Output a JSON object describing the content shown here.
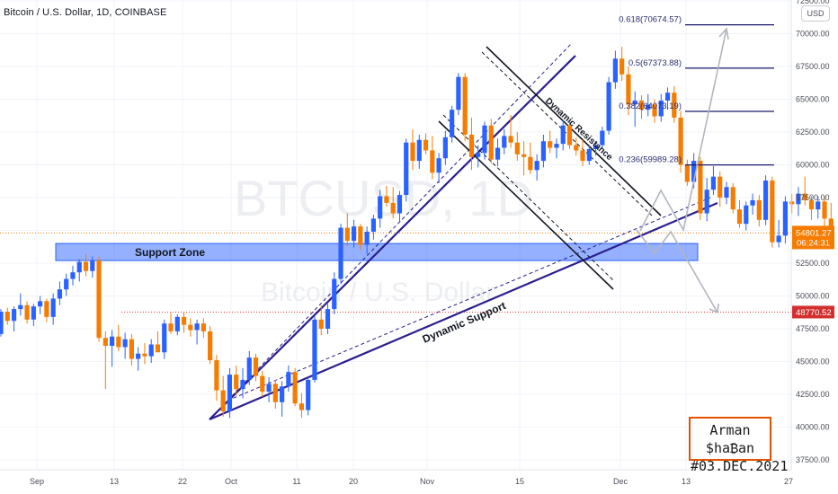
{
  "header": {
    "title": "Bitcoin / U.S. Dollar, 1D, COINBASE"
  },
  "watermark": {
    "symbol": "BTCUSD, 1D",
    "name": "Bitcoin / U.S. Dollar"
  },
  "currency_button": "USD",
  "signature": {
    "line1": "Arman $ha₿an",
    "line2": "#03.DEC.2021"
  },
  "colors": {
    "up": "#2962ff",
    "down": "#f57c00",
    "support_zone": "#2962ff",
    "trend": "#2b1f8e",
    "fib": "#1a1a6e",
    "projection": "#b2b5be",
    "signature_border": "#e65100"
  },
  "chart_data": {
    "type": "candlestick",
    "title": "Bitcoin / U.S. Dollar, 1D, COINBASE",
    "x_ticks": [
      "Sep",
      "13",
      "22",
      "Oct",
      "11",
      "20",
      "Nov",
      "15",
      "Dec",
      "13",
      "27"
    ],
    "y_ticks": [
      "72500.00",
      "70000.00",
      "67500.00",
      "65000.00",
      "62500.00",
      "60000.00",
      "57500.00",
      "55000.00",
      "52500.00",
      "50000.00",
      "47500.00",
      "45000.00",
      "42500.00",
      "40000.00",
      "37500.00"
    ],
    "ylim": [
      37000,
      73500
    ],
    "current_price": {
      "value": "54801.27",
      "countdown": "06:24:31"
    },
    "marked_level": "48770.52",
    "fibonacci_levels": [
      {
        "ratio": "0.618",
        "price": "70674.57",
        "label": "0.618(70674.57)"
      },
      {
        "ratio": "0.5",
        "price": "67373.88",
        "label": "0.5(67373.88)"
      },
      {
        "ratio": "0.382",
        "price": "64073.19",
        "label": "0.382(64073.19)"
      },
      {
        "ratio": "0.236",
        "price": "59989.28",
        "label": "0.236(59989.28)"
      }
    ],
    "support_zone": {
      "label": "Support Zone",
      "from": 52700,
      "to": 54000
    },
    "annotations": [
      "Dynamic Resistance",
      "Dynamic Support"
    ],
    "candles": [
      {
        "o": 47100,
        "h": 49000,
        "l": 46900,
        "c": 48800
      },
      {
        "o": 48800,
        "h": 49100,
        "l": 47800,
        "c": 48100
      },
      {
        "o": 48100,
        "h": 49200,
        "l": 47300,
        "c": 49000
      },
      {
        "o": 49000,
        "h": 50200,
        "l": 48500,
        "c": 49300
      },
      {
        "o": 49300,
        "h": 49600,
        "l": 47900,
        "c": 48200
      },
      {
        "o": 48200,
        "h": 49400,
        "l": 47700,
        "c": 49200
      },
      {
        "o": 49200,
        "h": 50000,
        "l": 48600,
        "c": 49600
      },
      {
        "o": 49600,
        "h": 49800,
        "l": 48000,
        "c": 48400
      },
      {
        "o": 48400,
        "h": 50200,
        "l": 47800,
        "c": 49800
      },
      {
        "o": 49800,
        "h": 51100,
        "l": 49300,
        "c": 50500
      },
      {
        "o": 50500,
        "h": 51700,
        "l": 50000,
        "c": 51300
      },
      {
        "o": 51300,
        "h": 52300,
        "l": 50800,
        "c": 51800
      },
      {
        "o": 51800,
        "h": 52800,
        "l": 51100,
        "c": 52600
      },
      {
        "o": 52600,
        "h": 53200,
        "l": 51500,
        "c": 51900
      },
      {
        "o": 51900,
        "h": 53000,
        "l": 51400,
        "c": 52700
      },
      {
        "o": 52700,
        "h": 53000,
        "l": 46500,
        "c": 46800
      },
      {
        "o": 46800,
        "h": 47300,
        "l": 42900,
        "c": 46200
      },
      {
        "o": 46200,
        "h": 47400,
        "l": 44600,
        "c": 46900
      },
      {
        "o": 46900,
        "h": 47800,
        "l": 45800,
        "c": 46100
      },
      {
        "o": 46100,
        "h": 47200,
        "l": 45200,
        "c": 46700
      },
      {
        "o": 46700,
        "h": 47100,
        "l": 44700,
        "c": 45200
      },
      {
        "o": 45200,
        "h": 46100,
        "l": 44300,
        "c": 45600
      },
      {
        "o": 45600,
        "h": 46400,
        "l": 44800,
        "c": 45400
      },
      {
        "o": 45400,
        "h": 46700,
        "l": 44900,
        "c": 46300
      },
      {
        "o": 46300,
        "h": 47300,
        "l": 45800,
        "c": 45700
      },
      {
        "o": 45700,
        "h": 48200,
        "l": 45200,
        "c": 47900
      },
      {
        "o": 47900,
        "h": 48700,
        "l": 47100,
        "c": 47300
      },
      {
        "o": 47300,
        "h": 48600,
        "l": 47000,
        "c": 48400
      },
      {
        "o": 48400,
        "h": 48800,
        "l": 47200,
        "c": 47800
      },
      {
        "o": 47800,
        "h": 48300,
        "l": 46900,
        "c": 47400
      },
      {
        "o": 47400,
        "h": 48200,
        "l": 46300,
        "c": 47900
      },
      {
        "o": 47900,
        "h": 48300,
        "l": 46800,
        "c": 47300
      },
      {
        "o": 47300,
        "h": 47700,
        "l": 44800,
        "c": 45100
      },
      {
        "o": 45100,
        "h": 45500,
        "l": 42000,
        "c": 42800
      },
      {
        "o": 42800,
        "h": 43900,
        "l": 40800,
        "c": 41200
      },
      {
        "o": 41200,
        "h": 44500,
        "l": 40700,
        "c": 44000
      },
      {
        "o": 44000,
        "h": 44700,
        "l": 42400,
        "c": 42900
      },
      {
        "o": 42900,
        "h": 44500,
        "l": 42200,
        "c": 43600
      },
      {
        "o": 43600,
        "h": 45800,
        "l": 43200,
        "c": 45300
      },
      {
        "o": 45300,
        "h": 45600,
        "l": 43500,
        "c": 43900
      },
      {
        "o": 43900,
        "h": 44300,
        "l": 42300,
        "c": 42700
      },
      {
        "o": 42700,
        "h": 43800,
        "l": 41900,
        "c": 43300
      },
      {
        "o": 43300,
        "h": 43600,
        "l": 41400,
        "c": 41900
      },
      {
        "o": 41900,
        "h": 43500,
        "l": 40800,
        "c": 43100
      },
      {
        "o": 43100,
        "h": 44700,
        "l": 42700,
        "c": 44200
      },
      {
        "o": 44200,
        "h": 44500,
        "l": 41600,
        "c": 41800
      },
      {
        "o": 41800,
        "h": 42600,
        "l": 40700,
        "c": 41300
      },
      {
        "o": 41300,
        "h": 43800,
        "l": 40900,
        "c": 43600
      },
      {
        "o": 43600,
        "h": 48500,
        "l": 43400,
        "c": 48200
      },
      {
        "o": 48200,
        "h": 49300,
        "l": 47000,
        "c": 47500
      },
      {
        "o": 47500,
        "h": 49400,
        "l": 47100,
        "c": 49000
      },
      {
        "o": 49000,
        "h": 51800,
        "l": 48600,
        "c": 51300
      },
      {
        "o": 51300,
        "h": 55500,
        "l": 50900,
        "c": 55200
      },
      {
        "o": 55200,
        "h": 56300,
        "l": 53800,
        "c": 54200
      },
      {
        "o": 54200,
        "h": 55800,
        "l": 53700,
        "c": 55300
      },
      {
        "o": 55300,
        "h": 55500,
        "l": 53500,
        "c": 53900
      },
      {
        "o": 53900,
        "h": 55300,
        "l": 53200,
        "c": 54900
      },
      {
        "o": 54900,
        "h": 56200,
        "l": 54300,
        "c": 55900
      },
      {
        "o": 55900,
        "h": 58100,
        "l": 55200,
        "c": 57600
      },
      {
        "o": 57600,
        "h": 58400,
        "l": 56800,
        "c": 57100
      },
      {
        "o": 57100,
        "h": 58300,
        "l": 55900,
        "c": 56300
      },
      {
        "o": 56300,
        "h": 58000,
        "l": 55700,
        "c": 57700
      },
      {
        "o": 57700,
        "h": 62000,
        "l": 57200,
        "c": 61700
      },
      {
        "o": 61700,
        "h": 62700,
        "l": 59600,
        "c": 60300
      },
      {
        "o": 60300,
        "h": 62300,
        "l": 59700,
        "c": 61900
      },
      {
        "o": 61900,
        "h": 62400,
        "l": 60800,
        "c": 61100
      },
      {
        "o": 61100,
        "h": 62200,
        "l": 58900,
        "c": 59400
      },
      {
        "o": 59400,
        "h": 60900,
        "l": 58600,
        "c": 60500
      },
      {
        "o": 60500,
        "h": 62600,
        "l": 60000,
        "c": 62100
      },
      {
        "o": 62100,
        "h": 64500,
        "l": 61700,
        "c": 64200
      },
      {
        "o": 64200,
        "h": 67000,
        "l": 63800,
        "c": 66700
      },
      {
        "o": 66700,
        "h": 67000,
        "l": 61800,
        "c": 62300
      },
      {
        "o": 62300,
        "h": 63600,
        "l": 59600,
        "c": 60600
      },
      {
        "o": 60600,
        "h": 61500,
        "l": 59800,
        "c": 60900
      },
      {
        "o": 60900,
        "h": 63300,
        "l": 60400,
        "c": 63000
      },
      {
        "o": 63000,
        "h": 63500,
        "l": 60100,
        "c": 60400
      },
      {
        "o": 60400,
        "h": 62000,
        "l": 59900,
        "c": 61300
      },
      {
        "o": 61300,
        "h": 62700,
        "l": 60800,
        "c": 62200
      },
      {
        "o": 62200,
        "h": 63800,
        "l": 61300,
        "c": 61700
      },
      {
        "o": 61700,
        "h": 62500,
        "l": 60300,
        "c": 60800
      },
      {
        "o": 60800,
        "h": 61800,
        "l": 59200,
        "c": 60600
      },
      {
        "o": 60600,
        "h": 61700,
        "l": 59300,
        "c": 59600
      },
      {
        "o": 59600,
        "h": 60800,
        "l": 58800,
        "c": 60300
      },
      {
        "o": 60300,
        "h": 62300,
        "l": 59800,
        "c": 61800
      },
      {
        "o": 61800,
        "h": 62600,
        "l": 60900,
        "c": 61300
      },
      {
        "o": 61300,
        "h": 62000,
        "l": 60500,
        "c": 61600
      },
      {
        "o": 61600,
        "h": 63400,
        "l": 61100,
        "c": 63000
      },
      {
        "o": 63000,
        "h": 63300,
        "l": 61200,
        "c": 61500
      },
      {
        "o": 61500,
        "h": 62100,
        "l": 60700,
        "c": 61100
      },
      {
        "o": 61100,
        "h": 61900,
        "l": 59900,
        "c": 60300
      },
      {
        "o": 60300,
        "h": 61500,
        "l": 60000,
        "c": 61200
      },
      {
        "o": 61200,
        "h": 61800,
        "l": 60700,
        "c": 61500
      },
      {
        "o": 61500,
        "h": 62900,
        "l": 61200,
        "c": 62600
      },
      {
        "o": 62600,
        "h": 66700,
        "l": 62300,
        "c": 66300
      },
      {
        "o": 66300,
        "h": 68700,
        "l": 65800,
        "c": 68100
      },
      {
        "o": 68100,
        "h": 69000,
        "l": 66400,
        "c": 66900
      },
      {
        "o": 66900,
        "h": 67500,
        "l": 63800,
        "c": 64600
      },
      {
        "o": 64600,
        "h": 65600,
        "l": 62900,
        "c": 64900
      },
      {
        "o": 64900,
        "h": 65300,
        "l": 63500,
        "c": 64200
      },
      {
        "o": 64200,
        "h": 65400,
        "l": 63700,
        "c": 64600
      },
      {
        "o": 64600,
        "h": 65000,
        "l": 63200,
        "c": 63700
      },
      {
        "o": 63700,
        "h": 65400,
        "l": 63300,
        "c": 64900
      },
      {
        "o": 64900,
        "h": 65900,
        "l": 64200,
        "c": 65500
      },
      {
        "o": 65500,
        "h": 66000,
        "l": 63200,
        "c": 63600
      },
      {
        "o": 63600,
        "h": 64100,
        "l": 59400,
        "c": 60000
      },
      {
        "o": 60000,
        "h": 60400,
        "l": 58400,
        "c": 58700
      },
      {
        "o": 58700,
        "h": 60900,
        "l": 58200,
        "c": 60300
      },
      {
        "o": 60300,
        "h": 60600,
        "l": 55800,
        "c": 56300
      },
      {
        "o": 56300,
        "h": 59000,
        "l": 55700,
        "c": 58100
      },
      {
        "o": 58100,
        "h": 59900,
        "l": 57700,
        "c": 59100
      },
      {
        "o": 59100,
        "h": 59500,
        "l": 56800,
        "c": 57500
      },
      {
        "o": 57500,
        "h": 58700,
        "l": 57000,
        "c": 58300
      },
      {
        "o": 58300,
        "h": 58600,
        "l": 56300,
        "c": 56600
      },
      {
        "o": 56600,
        "h": 57300,
        "l": 55200,
        "c": 55500
      },
      {
        "o": 55500,
        "h": 57200,
        "l": 55000,
        "c": 56900
      },
      {
        "o": 56900,
        "h": 57800,
        "l": 56200,
        "c": 57300
      },
      {
        "o": 57300,
        "h": 57700,
        "l": 55300,
        "c": 55800
      },
      {
        "o": 55800,
        "h": 59200,
        "l": 55400,
        "c": 58800
      },
      {
        "o": 58800,
        "h": 59100,
        "l": 53700,
        "c": 54100
      },
      {
        "o": 54100,
        "h": 55800,
        "l": 53700,
        "c": 54600
      },
      {
        "o": 54600,
        "h": 57600,
        "l": 54000,
        "c": 57200
      },
      {
        "o": 57200,
        "h": 57800,
        "l": 56300,
        "c": 57000
      },
      {
        "o": 57000,
        "h": 58300,
        "l": 56100,
        "c": 57800
      },
      {
        "o": 57800,
        "h": 59100,
        "l": 56900,
        "c": 57300
      },
      {
        "o": 57300,
        "h": 57600,
        "l": 55800,
        "c": 56600
      },
      {
        "o": 56600,
        "h": 57600,
        "l": 55900,
        "c": 57200
      },
      {
        "o": 57200,
        "h": 57600,
        "l": 55300,
        "c": 55900
      },
      {
        "o": 55900,
        "h": 57100,
        "l": 54300,
        "c": 54800
      }
    ]
  }
}
